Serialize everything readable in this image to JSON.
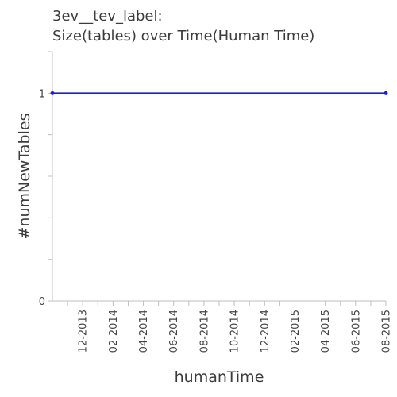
{
  "chart_data": {
    "type": "line",
    "title": "3ev__tev_label:",
    "subtitle": "Size(tables) over Time(Human Time)",
    "xlabel": "humanTime",
    "ylabel": "#numNewTables",
    "x_tick_labels": [
      "12-2013",
      "02-2014",
      "04-2014",
      "06-2014",
      "08-2014",
      "10-2014",
      "12-2014",
      "02-2015",
      "04-2015",
      "06-2015",
      "08-2015"
    ],
    "y_tick_labels": [
      "0",
      "1"
    ],
    "ylim": [
      0,
      1.2
    ],
    "xlim": [
      "2013-10",
      "2015-08"
    ],
    "grid": false,
    "series": [
      {
        "color": "#1f1fd1",
        "x": [
          "2013-10",
          "2015-08"
        ],
        "y": [
          1,
          1
        ]
      }
    ]
  }
}
